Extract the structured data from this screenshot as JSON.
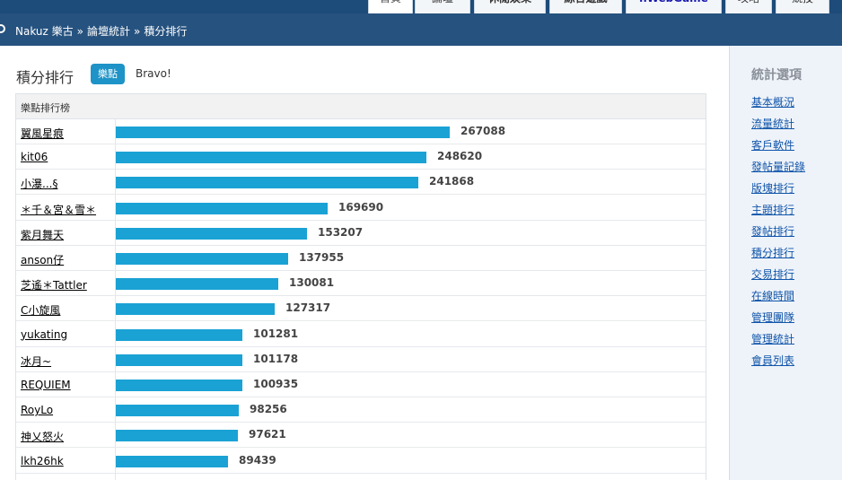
{
  "topnav": {
    "tabs": [
      {
        "label": "首頁",
        "active": true,
        "style": "active"
      },
      {
        "label": "論壇",
        "active": false,
        "style": ""
      },
      {
        "label": "休閒娛樂",
        "active": false,
        "style": "bold"
      },
      {
        "label": "綜合遊戲",
        "active": false,
        "style": "bold"
      },
      {
        "label": "nWebGame",
        "active": false,
        "style": "game"
      },
      {
        "label": "攻略",
        "active": false,
        "style": ""
      },
      {
        "label": "競技",
        "active": false,
        "style": ""
      }
    ]
  },
  "breadcrumb": {
    "items": [
      "Nakuz 樂古",
      "論壇統計",
      "積分排行"
    ],
    "separator": "»"
  },
  "heading": {
    "title": "積分排行",
    "pill": "樂點",
    "note": "Bravo!"
  },
  "table": {
    "header": "樂點排行榜",
    "max_value": 267088,
    "accent_color": "#1aa2d4",
    "rows": [
      {
        "name": "翼風星痕",
        "value": 267088
      },
      {
        "name": "kit06",
        "value": 248620
      },
      {
        "name": "小瀑...§",
        "value": 241868
      },
      {
        "name": "＊千＆宮＆雪＊",
        "value": 169690
      },
      {
        "name": "紫月舞天",
        "value": 153207
      },
      {
        "name": "anson仔",
        "value": 137955
      },
      {
        "name": "芝遙＊Tattler",
        "value": 130081
      },
      {
        "name": "C小旋風",
        "value": 127317
      },
      {
        "name": "yukating",
        "value": 101281
      },
      {
        "name": "冰月~",
        "value": 101178
      },
      {
        "name": "REQUIEM",
        "value": 100935
      },
      {
        "name": "RoyLo",
        "value": 98256
      },
      {
        "name": "神乂怒火",
        "value": 97621
      },
      {
        "name": "lkh26hk",
        "value": 89439
      }
    ]
  },
  "sidebar": {
    "title": "統計選項",
    "links": [
      "基本概況",
      "流量統計",
      "客戶軟件",
      "發帖量記錄",
      "版塊排行",
      "主題排行",
      "發帖排行",
      "積分排行",
      "交易排行",
      "在線時間",
      "管理團隊",
      "管理統計",
      "會員列表"
    ]
  }
}
